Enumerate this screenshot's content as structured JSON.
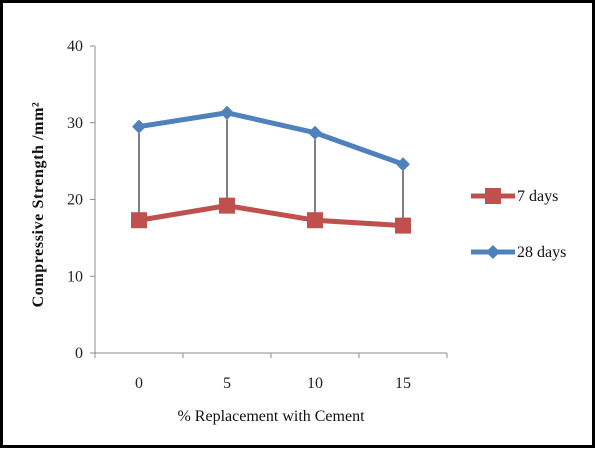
{
  "chart_data": {
    "type": "line",
    "categories": [
      "0",
      "5",
      "10",
      "15"
    ],
    "series": [
      {
        "name": "7 days",
        "values": [
          17.3,
          19.2,
          17.3,
          16.6
        ],
        "color": "#c0504d",
        "marker": "square"
      },
      {
        "name": "28 days",
        "values": [
          29.5,
          31.3,
          28.7,
          24.6
        ],
        "color": "#4f81bd",
        "marker": "diamond"
      }
    ],
    "drop_lines": true,
    "xlabel": "% Replacement with Cement",
    "ylabel": "Compressive Strength /mm²",
    "ylim": [
      0,
      40
    ],
    "yticks": [
      0,
      10,
      20,
      30,
      40
    ],
    "grid": false,
    "legend_position": "right"
  }
}
